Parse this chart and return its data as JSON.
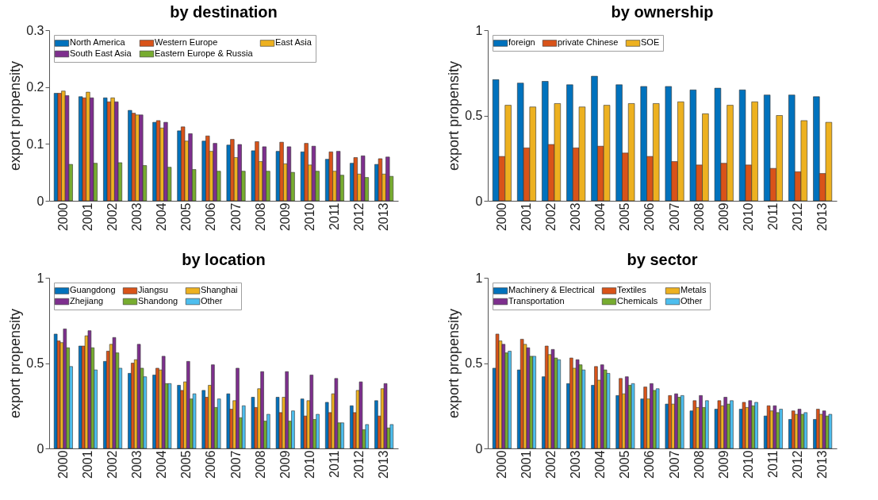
{
  "chart_data": [
    {
      "type": "bar",
      "title": "by destination",
      "ylabel": "export propensity",
      "categories": [
        "2000",
        "2001",
        "2002",
        "2003",
        "2004",
        "2005",
        "2006",
        "2007",
        "2008",
        "2009",
        "2010",
        "2011",
        "2012",
        "2013"
      ],
      "ylim": [
        0,
        0.3
      ],
      "yticks": [
        0,
        0.1,
        0.2,
        0.3
      ],
      "legend": "top left",
      "series": [
        {
          "name": "North America",
          "color": "#0072bd",
          "values": [
            0.189,
            0.183,
            0.181,
            0.159,
            0.138,
            0.123,
            0.105,
            0.098,
            0.088,
            0.087,
            0.086,
            0.073,
            0.066,
            0.064
          ]
        },
        {
          "name": "Western Europe",
          "color": "#d95319",
          "values": [
            0.189,
            0.181,
            0.174,
            0.154,
            0.141,
            0.13,
            0.114,
            0.108,
            0.104,
            0.103,
            0.101,
            0.086,
            0.076,
            0.074
          ]
        },
        {
          "name": "East Asia",
          "color": "#edb120",
          "values": [
            0.193,
            0.191,
            0.181,
            0.151,
            0.128,
            0.105,
            0.087,
            0.076,
            0.069,
            0.065,
            0.063,
            0.052,
            0.047,
            0.047
          ]
        },
        {
          "name": "South East Asia",
          "color": "#7e2f8e",
          "values": [
            0.185,
            0.181,
            0.174,
            0.151,
            0.138,
            0.118,
            0.101,
            0.099,
            0.095,
            0.095,
            0.096,
            0.087,
            0.079,
            0.077
          ]
        },
        {
          "name": "Eastern Europe & Russia",
          "color": "#77ac30",
          "values": [
            0.064,
            0.066,
            0.067,
            0.062,
            0.059,
            0.055,
            0.052,
            0.052,
            0.052,
            0.05,
            0.052,
            0.045,
            0.041,
            0.043
          ]
        }
      ]
    },
    {
      "type": "bar",
      "title": "by ownership",
      "ylabel": "export propensity",
      "categories": [
        "2000",
        "2001",
        "2002",
        "2003",
        "2004",
        "2005",
        "2006",
        "2007",
        "2008",
        "2009",
        "2010",
        "2011",
        "2012",
        "2013"
      ],
      "ylim": [
        0,
        1
      ],
      "yticks": [
        0,
        0.5,
        1
      ],
      "legend": "top left",
      "series": [
        {
          "name": "foreign",
          "color": "#0072bd",
          "values": [
            0.71,
            0.69,
            0.7,
            0.68,
            0.73,
            0.68,
            0.67,
            0.67,
            0.65,
            0.66,
            0.65,
            0.62,
            0.62,
            0.61
          ]
        },
        {
          "name": "private Chinese",
          "color": "#d95319",
          "values": [
            0.26,
            0.31,
            0.33,
            0.31,
            0.32,
            0.28,
            0.26,
            0.23,
            0.21,
            0.22,
            0.21,
            0.19,
            0.17,
            0.16
          ]
        },
        {
          "name": "SOE",
          "color": "#edb120",
          "values": [
            0.56,
            0.55,
            0.57,
            0.55,
            0.56,
            0.57,
            0.57,
            0.58,
            0.51,
            0.56,
            0.58,
            0.5,
            0.47,
            0.46
          ]
        }
      ]
    },
    {
      "type": "bar",
      "title": "by location",
      "ylabel": "export propensity",
      "categories": [
        "2000",
        "2001",
        "2002",
        "2003",
        "2004",
        "2005",
        "2006",
        "2007",
        "2008",
        "2009",
        "2010",
        "2011",
        "2012",
        "2013"
      ],
      "ylim": [
        0,
        1
      ],
      "yticks": [
        0,
        0.5,
        1
      ],
      "legend": "top left",
      "series": [
        {
          "name": "Guangdong",
          "color": "#0072bd",
          "values": [
            0.67,
            0.6,
            0.51,
            0.44,
            0.43,
            0.37,
            0.34,
            0.32,
            0.3,
            0.3,
            0.29,
            0.27,
            0.25,
            0.28
          ]
        },
        {
          "name": "Jiangsu",
          "color": "#d95319",
          "values": [
            0.63,
            0.6,
            0.57,
            0.5,
            0.47,
            0.34,
            0.3,
            0.23,
            0.24,
            0.21,
            0.19,
            0.21,
            0.21,
            0.19
          ]
        },
        {
          "name": "Shanghai",
          "color": "#edb120",
          "values": [
            0.62,
            0.66,
            0.61,
            0.52,
            0.46,
            0.39,
            0.37,
            0.28,
            0.35,
            0.3,
            0.28,
            0.32,
            0.34,
            0.35
          ]
        },
        {
          "name": "Zhejiang",
          "color": "#7e2f8e",
          "values": [
            0.7,
            0.69,
            0.65,
            0.61,
            0.54,
            0.51,
            0.49,
            0.47,
            0.45,
            0.45,
            0.43,
            0.41,
            0.39,
            0.38
          ]
        },
        {
          "name": "Shandong",
          "color": "#77ac30",
          "values": [
            0.59,
            0.59,
            0.56,
            0.47,
            0.38,
            0.29,
            0.24,
            0.18,
            0.16,
            0.16,
            0.17,
            0.15,
            0.11,
            0.12
          ]
        },
        {
          "name": "Other",
          "color": "#4dbeee",
          "values": [
            0.48,
            0.46,
            0.47,
            0.42,
            0.38,
            0.32,
            0.29,
            0.25,
            0.2,
            0.22,
            0.2,
            0.15,
            0.14,
            0.14
          ]
        }
      ]
    },
    {
      "type": "bar",
      "title": "by sector",
      "ylabel": "export propensity",
      "categories": [
        "2000",
        "2001",
        "2002",
        "2003",
        "2004",
        "2005",
        "2006",
        "2007",
        "2008",
        "2009",
        "2010",
        "2011",
        "2012",
        "2013"
      ],
      "ylim": [
        0,
        1
      ],
      "yticks": [
        0,
        0.5,
        1
      ],
      "legend": "top left",
      "series": [
        {
          "name": "Machinery & Electrical",
          "color": "#0072bd",
          "values": [
            0.47,
            0.46,
            0.42,
            0.38,
            0.37,
            0.31,
            0.29,
            0.26,
            0.22,
            0.23,
            0.23,
            0.19,
            0.17,
            0.17
          ]
        },
        {
          "name": "Textiles",
          "color": "#d95319",
          "values": [
            0.67,
            0.64,
            0.6,
            0.53,
            0.48,
            0.41,
            0.36,
            0.31,
            0.28,
            0.28,
            0.27,
            0.25,
            0.22,
            0.23
          ]
        },
        {
          "name": "Metals",
          "color": "#edb120",
          "values": [
            0.63,
            0.61,
            0.55,
            0.47,
            0.4,
            0.32,
            0.29,
            0.26,
            0.24,
            0.25,
            0.24,
            0.22,
            0.2,
            0.2
          ]
        },
        {
          "name": "Transportation",
          "color": "#7e2f8e",
          "values": [
            0.61,
            0.59,
            0.58,
            0.52,
            0.49,
            0.42,
            0.38,
            0.32,
            0.31,
            0.3,
            0.28,
            0.25,
            0.23,
            0.22
          ]
        },
        {
          "name": "Chemicals",
          "color": "#77ac30",
          "values": [
            0.56,
            0.54,
            0.53,
            0.49,
            0.46,
            0.37,
            0.34,
            0.3,
            0.24,
            0.26,
            0.25,
            0.21,
            0.2,
            0.19
          ]
        },
        {
          "name": "Other",
          "color": "#4dbeee",
          "values": [
            0.57,
            0.54,
            0.52,
            0.46,
            0.44,
            0.38,
            0.35,
            0.31,
            0.28,
            0.28,
            0.27,
            0.23,
            0.21,
            0.2
          ]
        }
      ]
    }
  ]
}
